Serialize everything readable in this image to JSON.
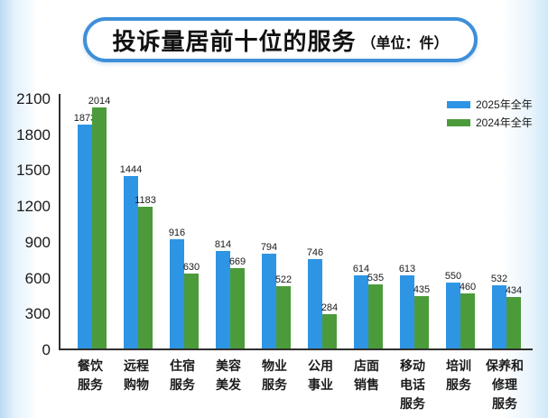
{
  "title": {
    "main": "投诉量居前十位的服务",
    "unit": "（单位：件）"
  },
  "legend": [
    {
      "label": "2025年全年",
      "color": "#2e95e4"
    },
    {
      "label": "2024年全年",
      "color": "#4c9b3b"
    }
  ],
  "colors": {
    "bar_2025": "#2e95e4",
    "bar_2024": "#4c9b3b",
    "title_border": "#3e8fd9",
    "axis": "#2f2f2f"
  },
  "chart_data": {
    "type": "bar",
    "title": "投诉量居前十位的服务（单位：件）",
    "xlabel": "",
    "ylabel": "",
    "ylim": [
      0,
      2100
    ],
    "yticks": [
      0,
      300,
      600,
      900,
      1200,
      1500,
      1800,
      2100
    ],
    "grid": false,
    "legend_position": "top-right",
    "categories": [
      "餐饮服务",
      "远程购物",
      "住宿服务",
      "美容美发",
      "物业服务",
      "公用事业",
      "店面销售",
      "移动电话服务",
      "培训服务",
      "保养和修理服务"
    ],
    "categories_display": [
      [
        "餐饮",
        "服务"
      ],
      [
        "远程",
        "购物"
      ],
      [
        "住宿",
        "服务"
      ],
      [
        "美容",
        "美发"
      ],
      [
        "物业",
        "服务"
      ],
      [
        "公用",
        "事业"
      ],
      [
        "店面",
        "销售"
      ],
      [
        "移动",
        "电话",
        "服务"
      ],
      [
        "培训",
        "服务"
      ],
      [
        "保养和",
        "修理",
        "服务"
      ]
    ],
    "series": [
      {
        "name": "2025年全年",
        "color": "#2e95e4",
        "values": [
          1873,
          1444,
          916,
          814,
          794,
          746,
          614,
          613,
          550,
          532
        ]
      },
      {
        "name": "2024年全年",
        "color": "#4c9b3b",
        "values": [
          2014,
          1183,
          630,
          669,
          522,
          284,
          535,
          435,
          460,
          434
        ]
      }
    ]
  }
}
